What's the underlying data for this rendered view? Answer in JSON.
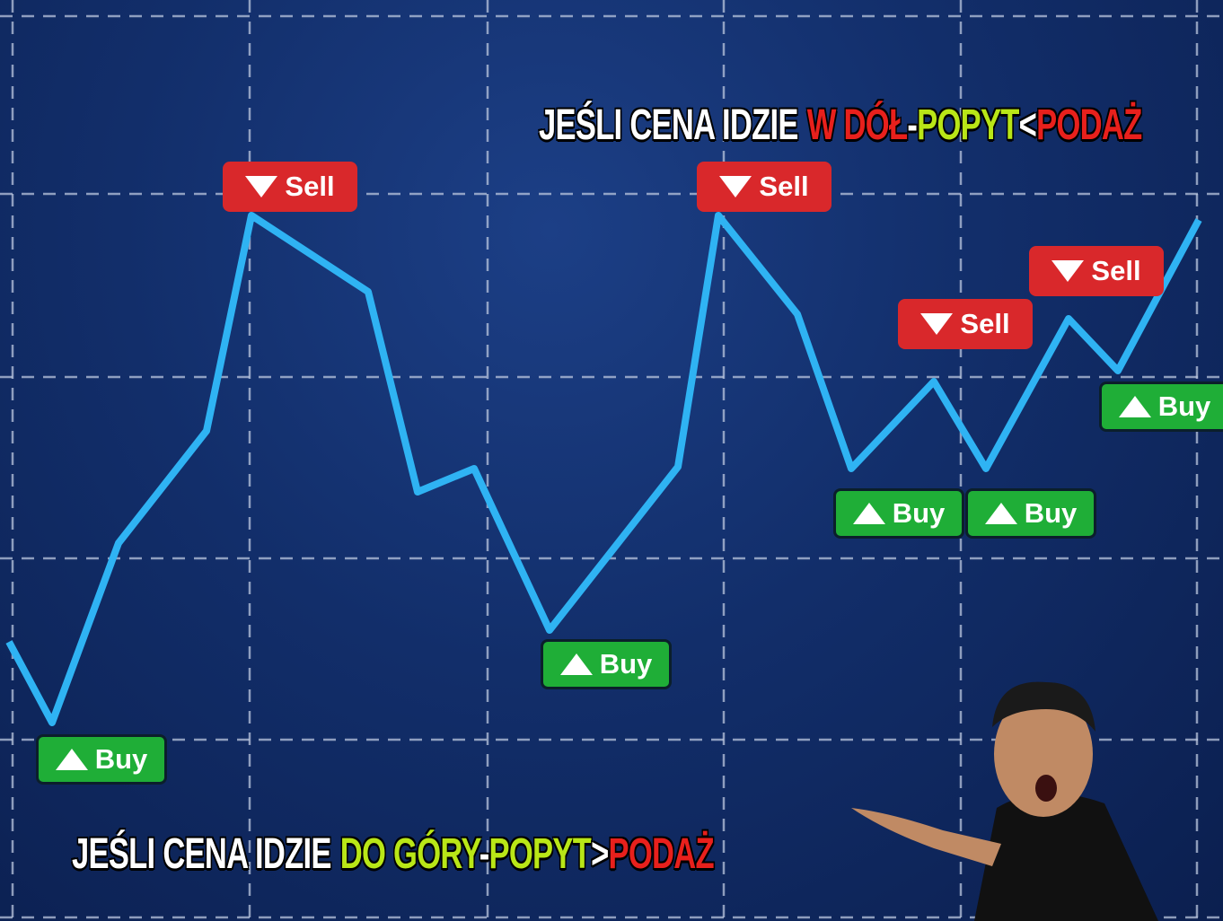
{
  "headline_top": {
    "parts": [
      "JEŚLI CENA IDZIE",
      "W DÓŁ",
      "-",
      "POPYT",
      "<",
      "PODAŻ"
    ]
  },
  "headline_bottom": {
    "parts": [
      "JEŚLI CENA IDZIE",
      "DO GÓRY",
      "-",
      "POPYT",
      ">",
      "PODAŻ"
    ]
  },
  "signals": [
    {
      "label": "Buy"
    },
    {
      "label": "Sell"
    },
    {
      "label": "Buy"
    },
    {
      "label": "Sell"
    },
    {
      "label": "Buy"
    },
    {
      "label": "Sell"
    },
    {
      "label": "Buy"
    },
    {
      "label": "Sell"
    },
    {
      "label": "Buy"
    }
  ]
}
